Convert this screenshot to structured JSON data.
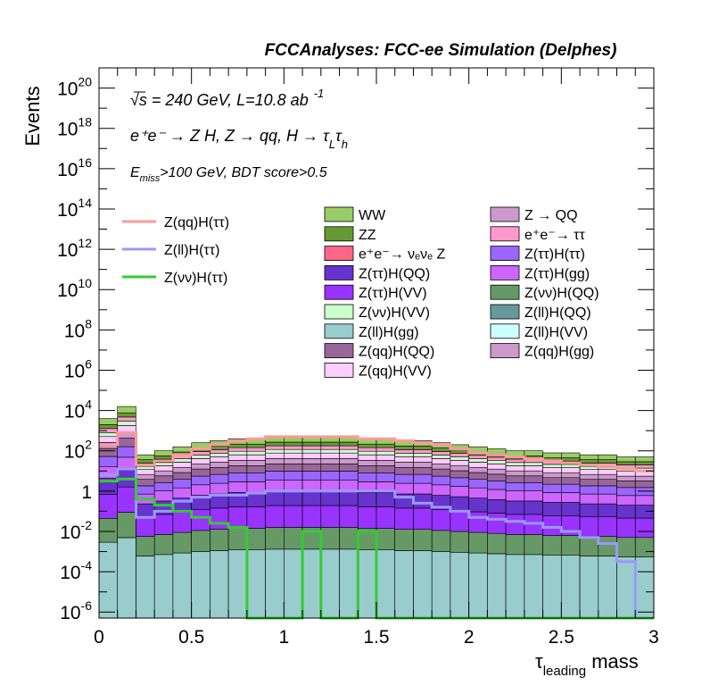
{
  "header": {
    "title": "FCCAnalyses: FCC-ee Simulation (Delphes)"
  },
  "annotations": {
    "line1_sqrt": "√s",
    "line1_rest": " = 240 GeV, L=10.8 ab",
    "line1_exp": "-1",
    "line2_main": "e⁺e⁻ → Z H, Z → qq, H → τ",
    "line2_sub1": "L",
    "line2_tau2": "τ",
    "line2_sub2": "h",
    "line3_E": "E",
    "line3_sub": "miss",
    "line3_rest": ">100 GeV, BDT score>0.5"
  },
  "chart_data": {
    "type": "histogram",
    "stacked": true,
    "log_y": true,
    "xlabel_main": "τ",
    "xlabel_sub": "leading",
    "xlabel_rest": " mass",
    "ylabel": "Events",
    "xlim": [
      0,
      3
    ],
    "ylim_exp": [
      -6.3,
      21
    ],
    "x_ticks": [
      "0",
      "0.5",
      "1",
      "1.5",
      "2",
      "2.5",
      "3"
    ],
    "y_tick_exps": [
      "20",
      "18",
      "16",
      "14",
      "12",
      "10",
      "8",
      "6",
      "4",
      "2",
      "0",
      "-2",
      "-4",
      "-6"
    ],
    "y_tick_prefix": "10",
    "y_tick_one": "1",
    "bin_edges": [
      0,
      0.1,
      0.2,
      0.3,
      0.4,
      0.5,
      0.6,
      0.7,
      0.8,
      0.9,
      1.0,
      1.1,
      1.2,
      1.3,
      1.4,
      1.5,
      1.6,
      1.7,
      1.8,
      1.9,
      2.0,
      2.1,
      2.2,
      2.3,
      2.4,
      2.5,
      2.6,
      2.7,
      2.8,
      2.9,
      3.0
    ],
    "stack_totals_log10": [
      3.6,
      4.2,
      1.8,
      2.0,
      2.2,
      2.4,
      2.5,
      2.6,
      2.6,
      2.7,
      2.7,
      2.7,
      2.7,
      2.7,
      2.6,
      2.6,
      2.5,
      2.5,
      2.4,
      2.3,
      2.2,
      2.1,
      2.0,
      2.0,
      1.9,
      1.9,
      1.8,
      1.8,
      1.7,
      1.7
    ],
    "legend": {
      "lines": [
        {
          "label": "Z(qq)H(ττ)",
          "color": "#ff9999"
        },
        {
          "label": "Z(ll)H(ττ)",
          "color": "#9999ff"
        },
        {
          "label": "Z(νν)H(ττ)",
          "color": "#33cc33"
        }
      ],
      "boxes_col1": [
        {
          "label": "WW",
          "color": "#99cc66"
        },
        {
          "label": "ZZ",
          "color": "#669933"
        },
        {
          "label": "e⁺e⁻→ νₑνₑ Z",
          "color": "#ff6688"
        },
        {
          "label": "Z(ττ)H(QQ)",
          "color": "#6633cc"
        },
        {
          "label": "Z(ττ)H(VV)",
          "color": "#9933ff"
        },
        {
          "label": "Z(νν)H(VV)",
          "color": "#ccffcc"
        },
        {
          "label": "Z(ll)H(gg)",
          "color": "#99cccc"
        },
        {
          "label": "Z(qq)H(QQ)",
          "color": "#996699"
        },
        {
          "label": "Z(qq)H(VV)",
          "color": "#ffccff"
        }
      ],
      "boxes_col2": [
        {
          "label": "Z → QQ",
          "color": "#cc99cc"
        },
        {
          "label": "e⁺e⁻→ ττ",
          "color": "#ff99cc"
        },
        {
          "label": "Z(ττ)H(ττ)",
          "color": "#9966ff"
        },
        {
          "label": "Z(ττ)H(gg)",
          "color": "#cc66ff"
        },
        {
          "label": "Z(νν)H(QQ)",
          "color": "#669966"
        },
        {
          "label": "Z(ll)H(QQ)",
          "color": "#669999"
        },
        {
          "label": "Z(ll)H(VV)",
          "color": "#ccffff"
        },
        {
          "label": "Z(qq)H(gg)",
          "color": "#cc99cc"
        }
      ]
    },
    "signal_lines": [
      {
        "name": "Z(qq)H(ττ)",
        "color": "#ff9999",
        "values_log10": [
          2.3,
          2.9,
          1.3,
          1.5,
          1.8,
          2.1,
          2.3,
          2.5,
          2.6,
          2.7,
          2.7,
          2.7,
          2.7,
          2.7,
          2.6,
          2.6,
          2.5,
          2.4,
          2.3,
          2.1,
          1.9,
          1.8,
          1.7,
          1.6,
          1.5,
          1.4,
          1.3,
          1.2,
          1.1,
          1.0
        ]
      },
      {
        "name": "Z(ll)H(ττ)",
        "color": "#9999ff",
        "values_log10": [
          0.8,
          1.1,
          -1.3,
          -1.0,
          -0.5,
          -0.3,
          -0.2,
          -0.2,
          -0.1,
          0.0,
          0.0,
          0.0,
          0.0,
          0.0,
          0.0,
          0.0,
          -0.3,
          -0.6,
          -0.8,
          -1.0,
          -1.3,
          -1.4,
          -1.5,
          -1.6,
          -1.8,
          -2.0,
          -2.3,
          -2.6,
          -3.5,
          -6.3
        ]
      },
      {
        "name": "Z(νν)H(ττ)",
        "color": "#33cc33",
        "values_log10": [
          0.5,
          0.6,
          -0.4,
          -0.7,
          -1.0,
          -1.3,
          -1.6,
          -1.8,
          -6.3,
          -6.3,
          -6.3,
          -2.0,
          -6.3,
          -6.3,
          -2.0,
          -6.3,
          -6.3,
          -6.3,
          -6.3,
          -6.3,
          -6.3,
          -6.3,
          -6.3,
          -6.3,
          -6.3,
          -6.3,
          -6.3,
          -6.3,
          -6.3,
          -6.3
        ]
      }
    ]
  }
}
